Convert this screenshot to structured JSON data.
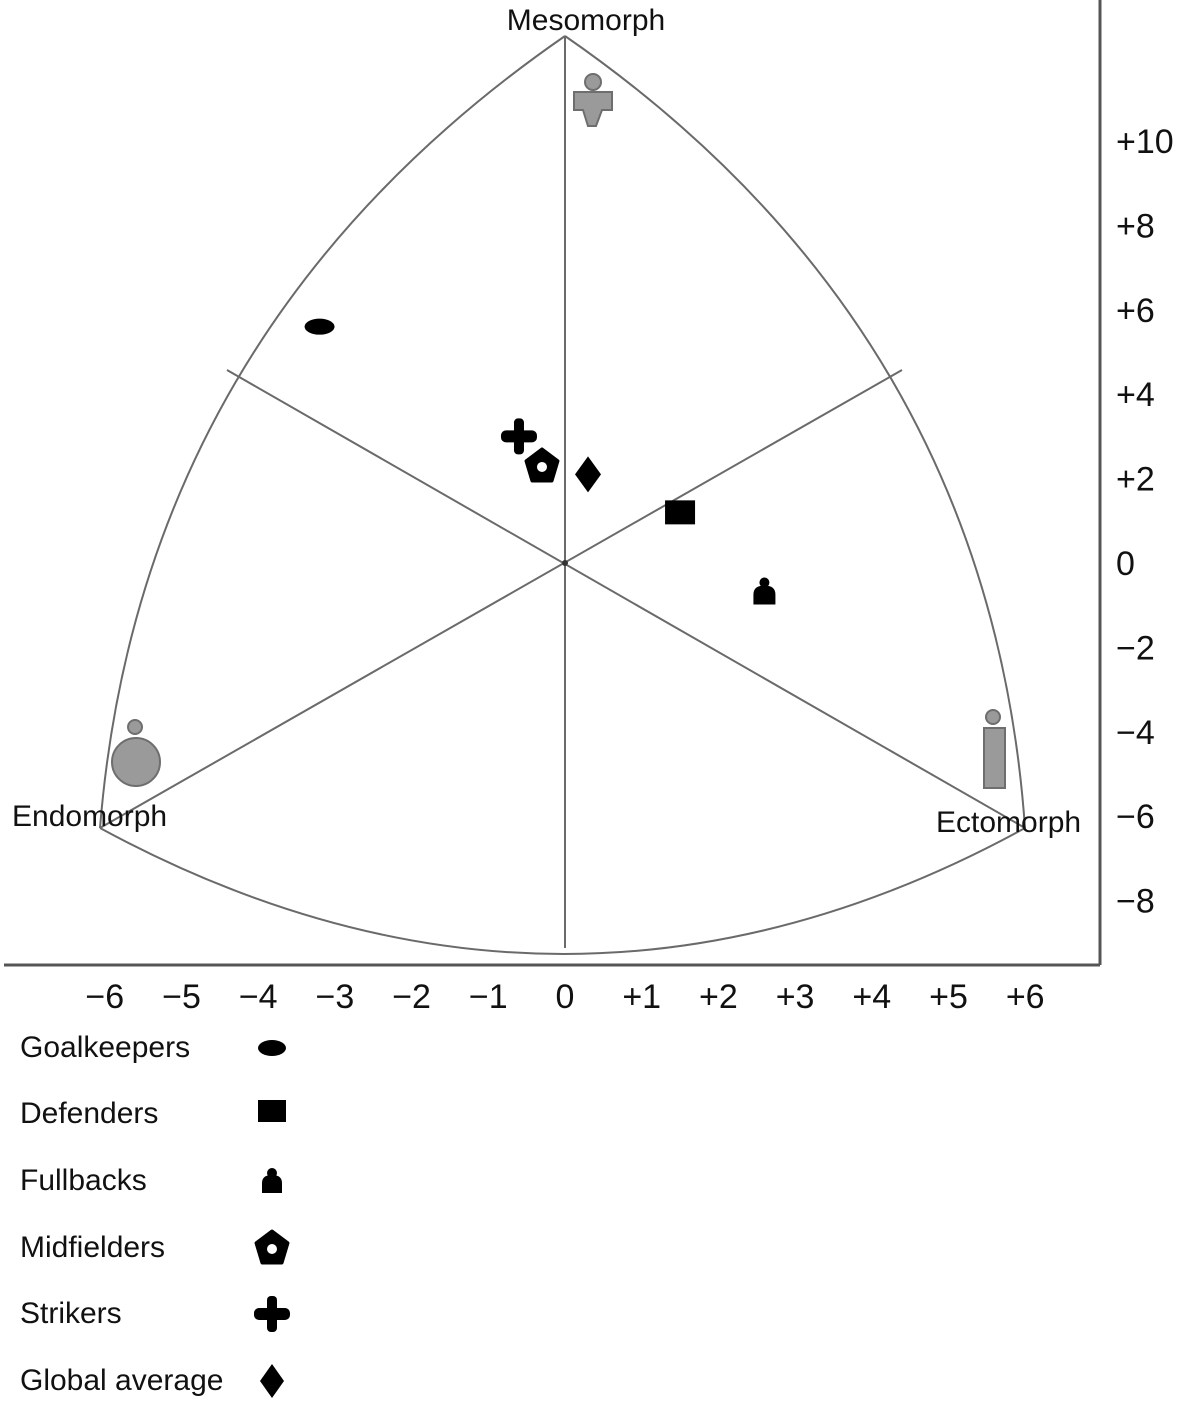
{
  "chart_data": {
    "type": "scatter",
    "subtype": "somatochart",
    "title": "",
    "corner_labels": [
      "Mesomorph",
      "Endomorph",
      "Ectomorph"
    ],
    "xlim": [
      -6,
      6
    ],
    "ylim": [
      -8,
      10
    ],
    "x_ticks": [
      "−6",
      "−5",
      "−4",
      "−3",
      "−2",
      "−1",
      "0",
      "+1",
      "+2",
      "+3",
      "+4",
      "+5",
      "+6"
    ],
    "y_ticks": [
      "+10",
      "+8",
      "+6",
      "+4",
      "+2",
      "0",
      "−2",
      "−4",
      "−6",
      "−8"
    ],
    "grid": false,
    "legend_position": "bottom-left",
    "series": [
      {
        "name": "Goalkeepers",
        "marker": "ellipse",
        "x": -3.2,
        "y": 5.6
      },
      {
        "name": "Defenders",
        "marker": "square",
        "x": 1.5,
        "y": 1.2
      },
      {
        "name": "Fullbacks",
        "marker": "stacked-dome",
        "x": 2.6,
        "y": -0.7
      },
      {
        "name": "Midfielders",
        "marker": "pentagon-ring",
        "x": -0.3,
        "y": 2.3
      },
      {
        "name": "Strikers",
        "marker": "cross",
        "x": -0.6,
        "y": 3.0
      },
      {
        "name": "Global average",
        "marker": "diamond",
        "x": 0.3,
        "y": 2.1
      }
    ],
    "colors": {
      "marker": "#000000",
      "outline": "#555555",
      "figure_fill": "#9a9a9a",
      "figure_stroke": "#6e6e6e"
    }
  }
}
